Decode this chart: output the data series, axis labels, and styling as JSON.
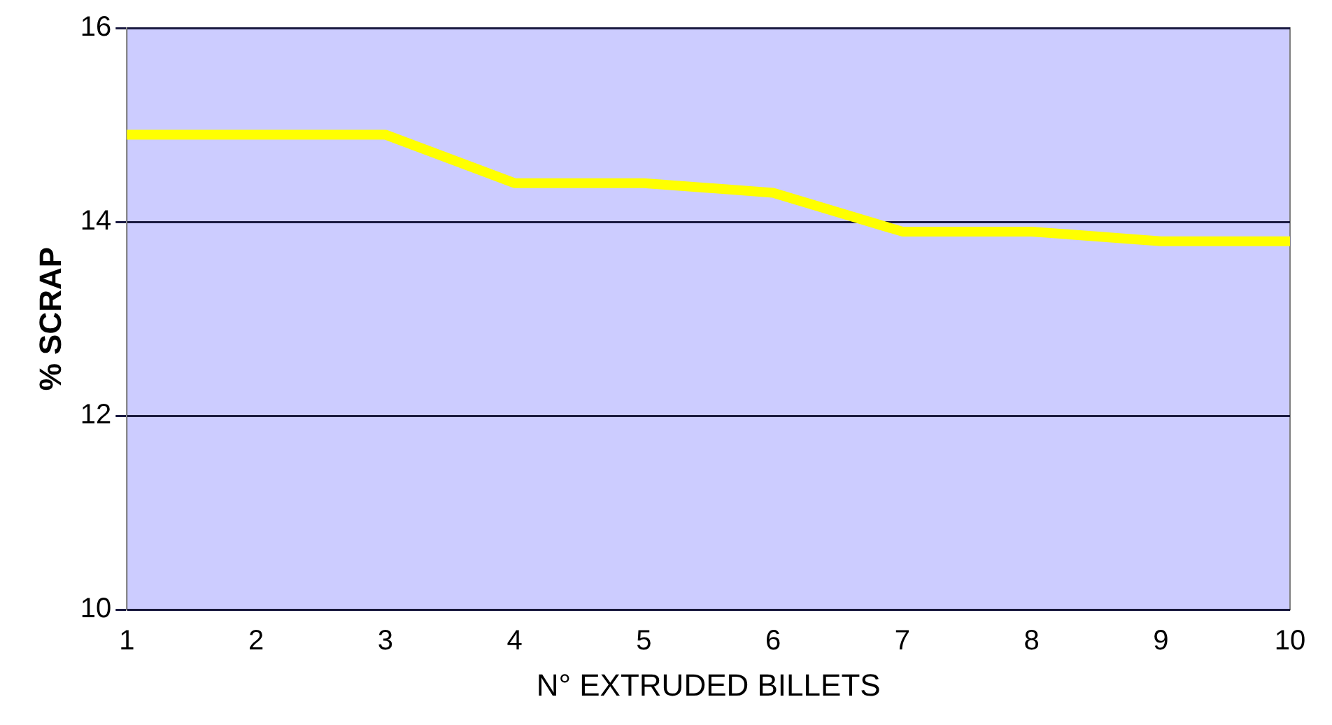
{
  "chart_data": {
    "type": "line",
    "xlabel": "N° EXTRUDED BILLETS",
    "ylabel": "% SCRAP",
    "categories": [
      "1",
      "2",
      "3",
      "4",
      "5",
      "6",
      "7",
      "8",
      "9",
      "10"
    ],
    "series": [
      {
        "color": "#ffff00",
        "values": [
          14.9,
          14.9,
          14.9,
          14.4,
          14.4,
          14.3,
          13.9,
          13.9,
          13.8,
          13.8
        ]
      }
    ],
    "ylim": [
      10,
      16
    ],
    "yticks": [
      10,
      12,
      14,
      16
    ],
    "grid": "y",
    "legend": false,
    "marker": "none"
  }
}
